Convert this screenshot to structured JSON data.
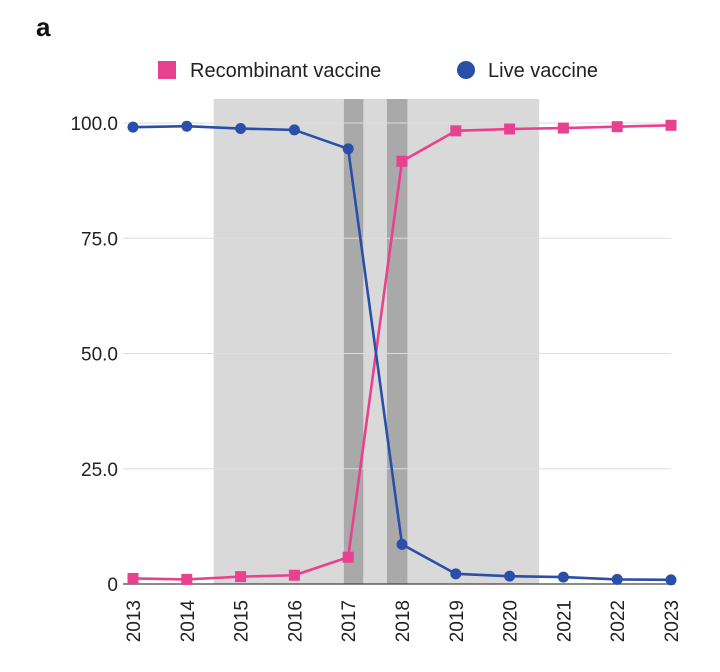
{
  "panel_label": "a",
  "chart_data": {
    "type": "line",
    "title": "",
    "xlabel": "",
    "ylabel": "",
    "x": [
      "2013",
      "2014",
      "2015",
      "2016",
      "2017",
      "2018",
      "2019",
      "2020",
      "2021",
      "2022",
      "2023"
    ],
    "ylim": [
      0,
      100
    ],
    "yticks": [
      "0",
      "25.0",
      "50.0",
      "75.0",
      "100.0"
    ],
    "ytick_values": [
      0,
      25,
      50,
      75,
      100
    ],
    "grid": true,
    "legend_position": "top",
    "series": [
      {
        "name": "Recombinant vaccine",
        "marker": "square",
        "color": "#e8418f",
        "values": [
          1.2,
          1.0,
          1.6,
          1.9,
          5.8,
          91.7,
          98.3,
          98.7,
          98.9,
          99.2,
          99.5
        ]
      },
      {
        "name": "Live vaccine",
        "marker": "circle",
        "color": "#2a4fa8",
        "values": [
          99.1,
          99.3,
          98.8,
          98.5,
          94.4,
          8.6,
          2.2,
          1.7,
          1.5,
          1.0,
          0.9
        ]
      }
    ],
    "shaded_regions": [
      {
        "from": 2014.5,
        "to": 2020.55,
        "color": "#d9d9d9"
      },
      {
        "from": 2016.92,
        "to": 2017.28,
        "color": "#a9a9a9"
      },
      {
        "from": 2017.72,
        "to": 2018.1,
        "color": "#a9a9a9"
      }
    ]
  }
}
